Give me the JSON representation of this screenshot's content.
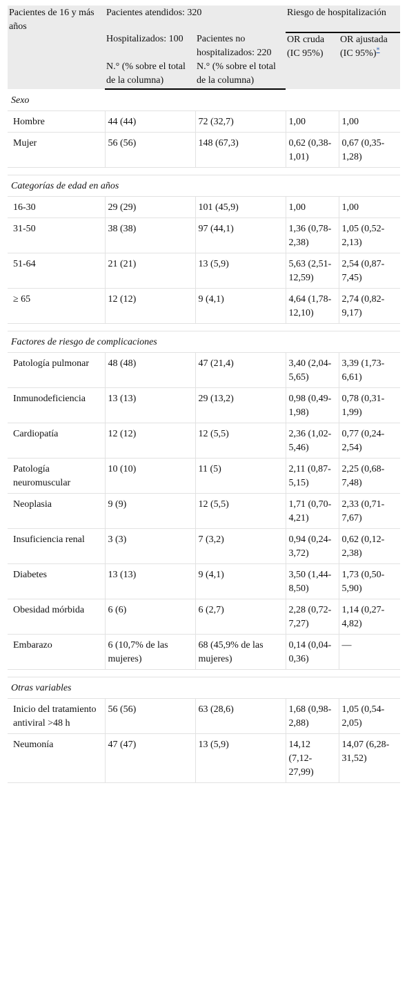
{
  "header": {
    "col1": "Pacientes de 16 y más años",
    "attended": "Pacientes atendidos: 320",
    "risk": "Riesgo de hospitalización",
    "hospitalized": "Hospitalizados: 100",
    "not_hospitalized": "Pacientes no hospitalizados: 220",
    "or_crude": "OR cruda (IC 95%)",
    "or_adjusted": "OR ajustada (IC 95%)",
    "footnote_mark": "*",
    "n_pct_1": "N.° (% sobre el total de la columna)",
    "n_pct_2": "N.° (% sobre el total de la columna)"
  },
  "sections": {
    "sexo": {
      "title": "Sexo",
      "rows": [
        [
          "Hombre",
          "44 (44)",
          "72 (32,7)",
          "1,00",
          "1,00"
        ],
        [
          "Mujer",
          "56 (56)",
          "148 (67,3)",
          "0,62 (0,38-1,01)",
          "0,67 (0,35-1,28)"
        ]
      ]
    },
    "edad": {
      "title": "Categorías de edad en años",
      "rows": [
        [
          "16-30",
          "29 (29)",
          "101 (45,9)",
          "1,00",
          "1,00"
        ],
        [
          "31-50",
          "38 (38)",
          "97 (44,1)",
          "1,36 (0,78-2,38)",
          "1,05 (0,52-2,13)"
        ],
        [
          "51-64",
          "21 (21)",
          "13 (5,9)",
          "5,63 (2,51-12,59)",
          "2,54 (0,87-7,45)"
        ],
        [
          "≥ 65",
          "12 (12)",
          "9 (4,1)",
          "4,64 (1,78-12,10)",
          "2,74 (0,82-9,17)"
        ]
      ]
    },
    "factores": {
      "title": "Factores de riesgo de complicaciones",
      "rows": [
        [
          "Patología pulmonar",
          "48 (48)",
          "47 (21,4)",
          "3,40 (2,04-5,65)",
          "3,39 (1,73-6,61)"
        ],
        [
          "Inmunodeficiencia",
          "13 (13)",
          "29 (13,2)",
          "0,98 (0,49-1,98)",
          "0,78 (0,31-1,99)"
        ],
        [
          "Cardiopatía",
          "12 (12)",
          "12 (5,5)",
          "2,36 (1,02-5,46)",
          "0,77 (0,24-2,54)"
        ],
        [
          "Patología neuromuscular",
          "10 (10)",
          "11 (5)",
          "2,11 (0,87-5,15)",
          "2,25 (0,68-7,48)"
        ],
        [
          "Neoplasia",
          "9 (9)",
          "12 (5,5)",
          "1,71 (0,70-4,21)",
          "2,33 (0,71-7,67)"
        ],
        [
          "Insuficiencia renal",
          "3 (3)",
          "7 (3,2)",
          "0,94 (0,24-3,72)",
          "0,62 (0,12-2,38)"
        ],
        [
          "Diabetes",
          "13 (13)",
          "9 (4,1)",
          "3,50 (1,44-8,50)",
          "1,73 (0,50-5,90)"
        ],
        [
          "Obesidad mórbida",
          "6 (6)",
          "6 (2,7)",
          "2,28 (0,72-7,27)",
          "1,14 (0,27-4,82)"
        ],
        [
          "Embarazo",
          "6 (10,7% de las mujeres)",
          "68 (45,9% de las mujeres)",
          "0,14 (0,04-0,36)",
          "—"
        ]
      ]
    },
    "otras": {
      "title": "Otras variables",
      "rows": [
        [
          "Inicio del tratamiento antiviral >48 h",
          "56 (56)",
          "63 (28,6)",
          "1,68 (0,98-2,88)",
          "1,05 (0,54-2,05)"
        ],
        [
          "Neumonía",
          "47 (47)",
          "13 (5,9)",
          "14,12 (7,12-27,99)",
          "14,07 (6,28-31,52)"
        ]
      ]
    }
  }
}
